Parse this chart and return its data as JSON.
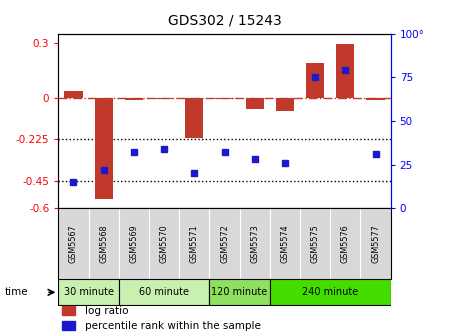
{
  "title": "GDS302 / 15243",
  "samples": [
    "GSM5567",
    "GSM5568",
    "GSM5569",
    "GSM5570",
    "GSM5571",
    "GSM5572",
    "GSM5573",
    "GSM5574",
    "GSM5575",
    "GSM5576",
    "GSM5577"
  ],
  "log_ratio": [
    0.04,
    -0.55,
    -0.01,
    -0.005,
    -0.22,
    -0.005,
    -0.06,
    -0.07,
    0.19,
    0.295,
    -0.01
  ],
  "percentile": [
    15,
    22,
    32,
    34,
    20,
    32,
    28,
    26,
    75,
    79,
    31
  ],
  "ylim_left": [
    -0.6,
    0.35
  ],
  "ylim_right": [
    0,
    100
  ],
  "yticks_left": [
    -0.6,
    -0.45,
    -0.225,
    0,
    0.3
  ],
  "yticks_right": [
    0,
    25,
    50,
    75,
    100
  ],
  "ytick_labels_left": [
    "-0.6",
    "-0.45",
    "-0.225",
    "0",
    "0.3"
  ],
  "ytick_labels_right": [
    "0",
    "25",
    "50",
    "75",
    "100°"
  ],
  "hlines_dotted": [
    -0.225,
    -0.45
  ],
  "bar_color": "#c0392b",
  "dot_color": "#1a1acd",
  "dashdot_color": "#c0392b",
  "time_groups": [
    {
      "label": "30 minute",
      "start": 0,
      "end": 2,
      "color": "#c8f0b0"
    },
    {
      "label": "60 minute",
      "start": 2,
      "end": 5,
      "color": "#c8f0b0"
    },
    {
      "label": "120 minute",
      "start": 5,
      "end": 7,
      "color": "#90e060"
    },
    {
      "label": "240 minute",
      "start": 7,
      "end": 11,
      "color": "#44dd00"
    }
  ],
  "time_label": "time",
  "legend_log_ratio": "log ratio",
  "legend_percentile": "percentile rank within the sample",
  "sample_bg": "#d8d8d8",
  "plot_bg": "white"
}
